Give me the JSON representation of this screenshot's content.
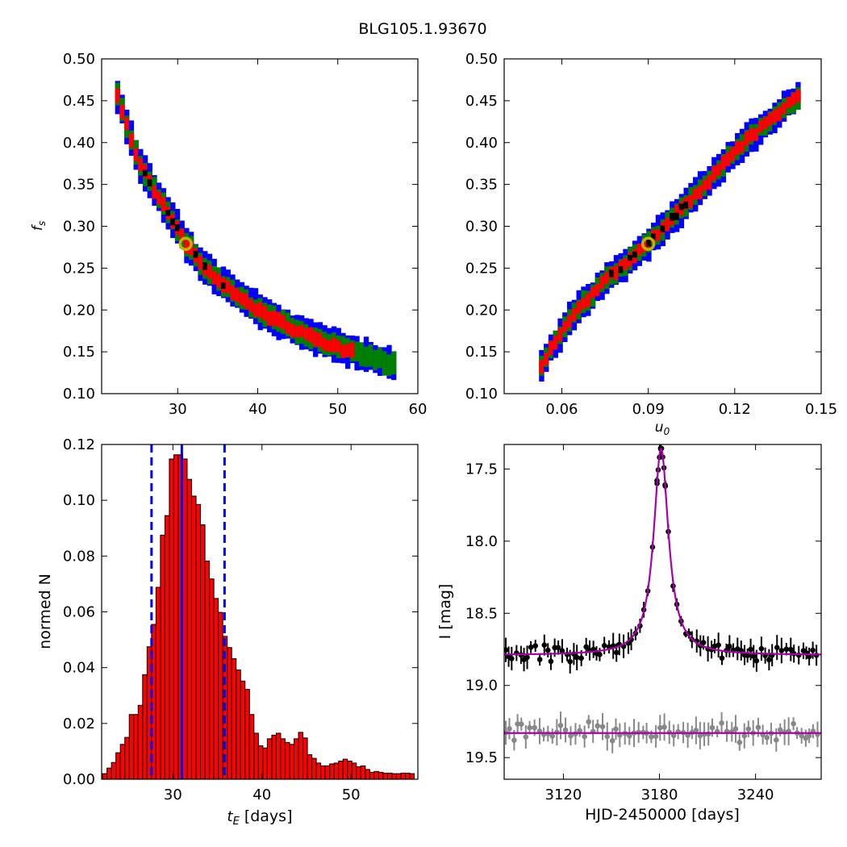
{
  "figure_title": "BLG105.1.93670",
  "colors": {
    "outer": "#0000ff",
    "mid": "#008000",
    "inner": "#ff0000",
    "core": "#000000",
    "best_fit_marker": "#b8b800",
    "hist_bar": "#ff0000",
    "hist_line": "#0000ff",
    "model": "#aa00aa",
    "data_black": "#000000",
    "data_gray": "#888888"
  },
  "chart_data": [
    {
      "id": "tE_fs",
      "type": "heatmap",
      "title": "",
      "xlabel": "",
      "ylabel": "f_s",
      "xlim": [
        20.5,
        60
      ],
      "ylim": [
        0.1,
        0.5
      ],
      "xticks": [
        "30",
        "40",
        "50",
        "60"
      ],
      "yticks": [
        "0.10",
        "0.15",
        "0.20",
        "0.25",
        "0.30",
        "0.35",
        "0.40",
        "0.45",
        "0.50"
      ],
      "levels": [
        "outer",
        "mid",
        "inner",
        "core"
      ],
      "ridge": [
        [
          22.5,
          0.455
        ],
        [
          25,
          0.38
        ],
        [
          27,
          0.345
        ],
        [
          29.5,
          0.305
        ],
        [
          31,
          0.28
        ],
        [
          33,
          0.255
        ],
        [
          36,
          0.228
        ],
        [
          40,
          0.2
        ],
        [
          45,
          0.175
        ],
        [
          50,
          0.155
        ],
        [
          54,
          0.145
        ],
        [
          57,
          0.135
        ]
      ],
      "best_fit": [
        31.0,
        0.279
      ]
    },
    {
      "id": "u0_fs",
      "type": "heatmap",
      "title": "",
      "xlabel": "u_0",
      "ylabel": "",
      "xlim": [
        0.04,
        0.15
      ],
      "ylim": [
        0.1,
        0.5
      ],
      "xticks": [
        "0.06",
        "0.09",
        "0.12",
        "0.15"
      ],
      "yticks": [
        "0.10",
        "0.15",
        "0.20",
        "0.25",
        "0.30",
        "0.35",
        "0.40",
        "0.45",
        "0.50"
      ],
      "levels": [
        "outer",
        "mid",
        "inner",
        "core"
      ],
      "ridge": [
        [
          0.053,
          0.135
        ],
        [
          0.063,
          0.19
        ],
        [
          0.075,
          0.235
        ],
        [
          0.09,
          0.279
        ],
        [
          0.1,
          0.315
        ],
        [
          0.11,
          0.35
        ],
        [
          0.12,
          0.39
        ],
        [
          0.13,
          0.42
        ],
        [
          0.142,
          0.455
        ]
      ],
      "best_fit": [
        0.09,
        0.279
      ]
    },
    {
      "id": "tE_hist",
      "type": "bar",
      "title": "",
      "xlabel": "t_E [days]",
      "ylabel": "normed N",
      "xlim": [
        22,
        57.5
      ],
      "ylim": [
        0,
        0.12
      ],
      "xticks": [
        "30",
        "40",
        "50"
      ],
      "yticks": [
        "0.00",
        "0.02",
        "0.04",
        "0.06",
        "0.08",
        "0.10",
        "0.12"
      ],
      "bin_start": 22.1,
      "bin_width": 0.5,
      "values": [
        0.002,
        0.004,
        0.006,
        0.0095,
        0.0125,
        0.015,
        0.0232,
        0.0232,
        0.0265,
        0.0375,
        0.0475,
        0.0555,
        0.0688,
        0.0875,
        0.0945,
        0.1148,
        0.1163,
        0.1163,
        0.1148,
        0.1075,
        0.1015,
        0.0985,
        0.0912,
        0.0782,
        0.0718,
        0.0648,
        0.0598,
        0.0512,
        0.0472,
        0.0432,
        0.0392,
        0.0352,
        0.0322,
        0.0232,
        0.0165,
        0.012,
        0.0112,
        0.0145,
        0.0158,
        0.0165,
        0.0145,
        0.0132,
        0.0125,
        0.0145,
        0.0168,
        0.0148,
        0.0088,
        0.0075,
        0.0058,
        0.0048,
        0.0048,
        0.0055,
        0.0058,
        0.0065,
        0.0072,
        0.0065,
        0.0058,
        0.0045,
        0.0048,
        0.0035,
        0.0025,
        0.0028,
        0.0025,
        0.0022,
        0.0022,
        0.002,
        0.002,
        0.0022,
        0.0022,
        0.002
      ],
      "vlines": {
        "median": 31.0,
        "low": 27.6,
        "high": 35.8
      }
    },
    {
      "id": "lightcurve",
      "type": "scatter",
      "title": "",
      "xlabel": "HJD-2450000 [days]",
      "ylabel": "I [mag]",
      "xlim": [
        3083,
        3281
      ],
      "ylim": [
        19.65,
        17.33
      ],
      "xticks": [
        "3120",
        "3180",
        "3240"
      ],
      "yticks": [
        "17.5",
        "18.0",
        "18.5",
        "19.0",
        "19.5"
      ],
      "model": {
        "t0": 3181,
        "baseline": 18.79,
        "peak": 17.36,
        "width": 5.6
      },
      "residual_baseline": 19.33
    }
  ]
}
